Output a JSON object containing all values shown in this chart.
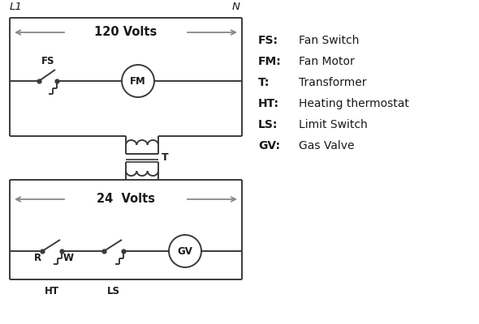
{
  "bg_color": "#ffffff",
  "line_color": "#3a3a3a",
  "arrow_color": "#888888",
  "text_color": "#1a1a1a",
  "legend_items": [
    [
      "FS:",
      "Fan Switch"
    ],
    [
      "FM:",
      "Fan Motor"
    ],
    [
      "T:",
      "Transformer"
    ],
    [
      "HT:",
      "Heating thermostat"
    ],
    [
      "LS:",
      "Limit Switch"
    ],
    [
      "GV:",
      "Gas Valve"
    ]
  ],
  "label_L1": "L1",
  "label_N": "N",
  "volts_120": "120 Volts",
  "volts_24": "24  Volts",
  "trans_label": "T",
  "label_FS": "FS",
  "label_FM": "FM",
  "label_GV": "GV",
  "label_R": "R",
  "label_W": "W",
  "label_HT": "HT",
  "label_LS": "LS"
}
